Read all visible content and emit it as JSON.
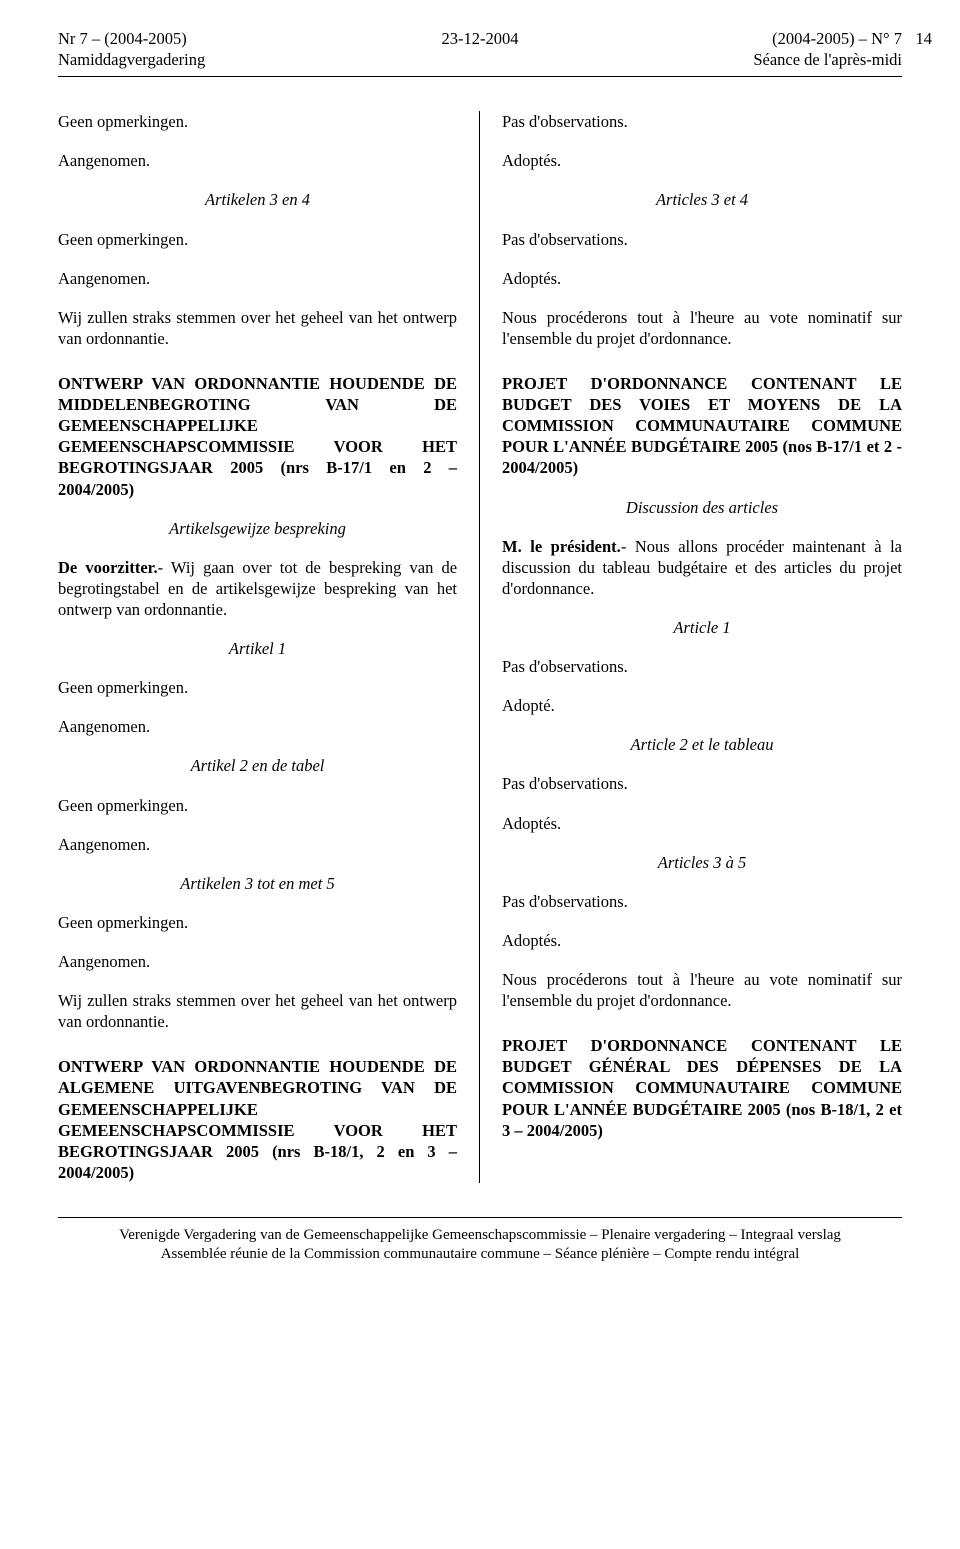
{
  "header": {
    "left_line1": "Nr 7 – (2004-2005)",
    "left_line2": "Namiddagvergadering",
    "center": "23-12-2004",
    "right_line1": "(2004-2005) – N° 7",
    "right_line2": "Séance de l'après-midi",
    "page_number": "14"
  },
  "left_col": {
    "p1": "Geen opmerkingen.",
    "p2": "Aangenomen.",
    "h1": "Artikelen 3 en 4",
    "p3": "Geen opmerkingen.",
    "p4": "Aangenomen.",
    "p5": "Wij zullen straks stemmen over het geheel van het ontwerp van ordonnantie.",
    "title1": "ONTWERP VAN ORDONNANTIE HOUDENDE DE MIDDELENBEGROTING VAN DE GEMEENSCHAPPELIJKE GEMEENSCHAPSCOMMISSIE VOOR HET BEGROTINGSJAAR 2005 (nrs B-17/1 en 2 – 2004/2005)",
    "h2": "Artikelsgewijze bespreking",
    "p6_bold": "De voorzitter.",
    "p6_rest": "- Wij gaan over tot de bespreking van de begrotingstabel en de artikelsgewijze bespreking van het ontwerp van ordonnantie.",
    "h3": "Artikel 1",
    "p7": "Geen opmerkingen.",
    "p8": "Aangenomen.",
    "h4": "Artikel 2 en de tabel",
    "p9": "Geen opmerkingen.",
    "p10": "Aangenomen.",
    "h5": "Artikelen 3 tot en met 5",
    "p11": "Geen opmerkingen.",
    "p12": "Aangenomen.",
    "p13": "Wij zullen straks stemmen over het geheel van het ontwerp van ordonnantie.",
    "title2": "ONTWERP VAN ORDONNANTIE HOUDENDE DE ALGEMENE UITGAVENBEGROTING VAN DE GEMEENSCHAPPELIJKE GEMEENSCHAPSCOMMISSIE VOOR HET BEGROTINGSJAAR 2005 (nrs B-18/1, 2 en 3 – 2004/2005)"
  },
  "right_col": {
    "p1": "Pas d'observations.",
    "p2": "Adoptés.",
    "h1": "Articles 3 et 4",
    "p3": "Pas d'observations.",
    "p4": "Adoptés.",
    "p5": "Nous procéderons tout à l'heure au vote nominatif sur l'ensemble du projet d'ordonnance.",
    "title1": "PROJET D'ORDONNANCE CONTENANT LE BUDGET DES VOIES ET MOYENS DE LA COMMISSION COMMUNAUTAIRE COMMUNE POUR L'ANNÉE BUDGÉTAIRE 2005 (nos B-17/1 et 2 - 2004/2005)",
    "h2": "Discussion des articles",
    "p6_bold": "M. le président.",
    "p6_rest": "- Nous allons procéder maintenant à la discussion du tableau budgétaire et des articles du projet d'ordonnance.",
    "h3": "Article 1",
    "p7": "Pas d'observations.",
    "p8": "Adopté.",
    "h4": "Article 2 et le tableau",
    "p9": "Pas d'observations.",
    "p10": "Adoptés.",
    "h5": "Articles 3 à 5",
    "p11": "Pas d'observations.",
    "p12": "Adoptés.",
    "p13": "Nous procéderons tout à l'heure au vote nominatif sur l'ensemble du projet d'ordonnance.",
    "title2": "PROJET D'ORDONNANCE CONTENANT LE BUDGET GÉNÉRAL DES DÉPENSES DE LA COMMISSION COMMUNAUTAIRE COMMUNE POUR L'ANNÉE BUDGÉTAIRE 2005 (nos B-18/1, 2 et 3 – 2004/2005)"
  },
  "footer": {
    "line1": "Verenigde Vergadering van de Gemeenschappelijke Gemeenschapscommissie – Plenaire vergadering – Integraal verslag",
    "line2": "Assemblée réunie de la Commission communautaire commune – Séance plénière – Compte rendu intégral"
  }
}
